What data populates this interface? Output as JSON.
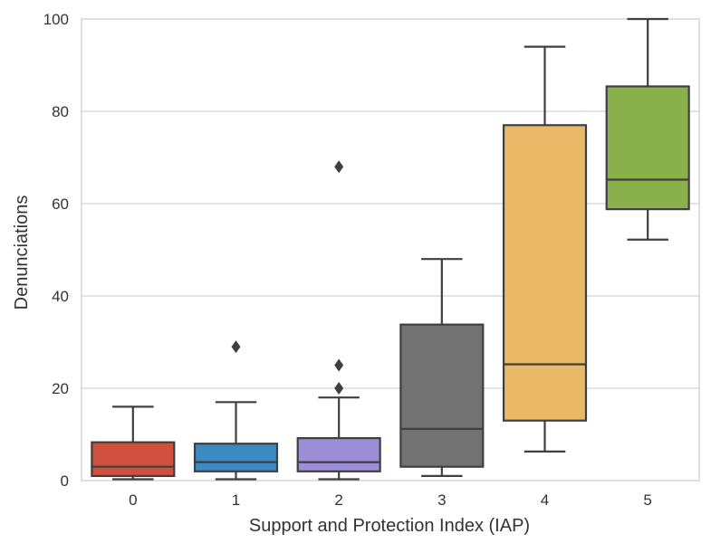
{
  "chart_data": {
    "type": "box",
    "title": "",
    "xlabel": "Support and Protection Index (IAP)",
    "ylabel": "Denunciations",
    "ylim": [
      0,
      100
    ],
    "yticks": [
      0,
      20,
      40,
      60,
      80,
      100
    ],
    "grid": "horizontal",
    "categories": [
      "0",
      "1",
      "2",
      "3",
      "4",
      "5"
    ],
    "boxes": [
      {
        "category": "0",
        "whisker_low": 0.3,
        "q1": 1.0,
        "median": 3.0,
        "q3": 8.3,
        "whisker_high": 16.0,
        "outliers": [],
        "color": "#d0503e"
      },
      {
        "category": "1",
        "whisker_low": 0.3,
        "q1": 2.0,
        "median": 4.0,
        "q3": 8.0,
        "whisker_high": 17.0,
        "outliers": [
          29.0
        ],
        "color": "#3a8bc2"
      },
      {
        "category": "2",
        "whisker_low": 0.3,
        "q1": 2.0,
        "median": 4.0,
        "q3": 9.2,
        "whisker_high": 18.0,
        "outliers": [
          20.0,
          25.0,
          68.0
        ],
        "color": "#9b8ed6"
      },
      {
        "category": "3",
        "whisker_low": 1.0,
        "q1": 3.0,
        "median": 11.2,
        "q3": 33.8,
        "whisker_high": 48.0,
        "outliers": [],
        "color": "#727272"
      },
      {
        "category": "4",
        "whisker_low": 6.3,
        "q1": 13.0,
        "median": 25.2,
        "q3": 77.0,
        "whisker_high": 94.0,
        "outliers": [],
        "color": "#e9b968"
      },
      {
        "category": "5",
        "whisker_low": 52.2,
        "q1": 58.8,
        "median": 65.2,
        "q3": 85.4,
        "whisker_high": 100.0,
        "outliers": [],
        "color": "#8ab04c"
      }
    ],
    "colors": {
      "edge": "#3f3f3f",
      "grid": "#d3d3d3",
      "frame": "#cccccc"
    }
  }
}
